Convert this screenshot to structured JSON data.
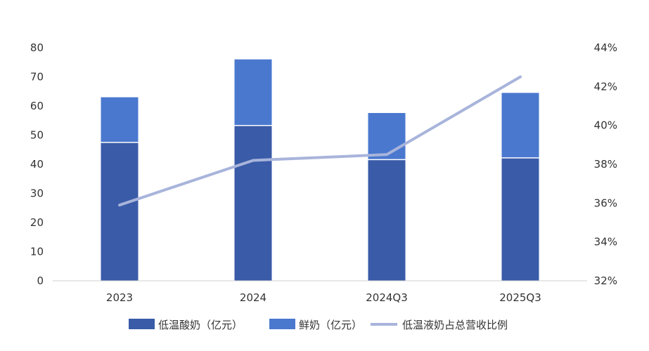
{
  "chart_data": {
    "type": "bar",
    "categories": [
      "2023",
      "2024",
      "2024Q3",
      "2025Q3"
    ],
    "series": [
      {
        "name": "低温酸奶（亿元）",
        "kind": "bar",
        "stack": "total",
        "axis": "left",
        "color": "#3A5BA8",
        "values": [
          47.5,
          53.3,
          41.6,
          42.2
        ]
      },
      {
        "name": "鲜奶（亿元）",
        "kind": "bar",
        "stack": "total",
        "axis": "left",
        "color": "#4A78CF",
        "values": [
          15.5,
          22.7,
          16.0,
          22.3
        ]
      },
      {
        "name": "低温液奶占总营收比例",
        "kind": "line",
        "axis": "right",
        "color": "#A8B4DB",
        "values": [
          35.9,
          38.2,
          38.5,
          42.5
        ]
      }
    ],
    "left_axis": {
      "ylim": [
        0,
        80
      ],
      "ticks": [
        0,
        10,
        20,
        30,
        40,
        50,
        60,
        70,
        80
      ]
    },
    "right_axis": {
      "ylim": [
        32,
        44
      ],
      "ticks": [
        "32%",
        "34%",
        "36%",
        "38%",
        "40%",
        "42%",
        "44%"
      ]
    },
    "grid": false,
    "legend_position": "bottom",
    "title": "",
    "xlabel": "",
    "ylabel": ""
  }
}
